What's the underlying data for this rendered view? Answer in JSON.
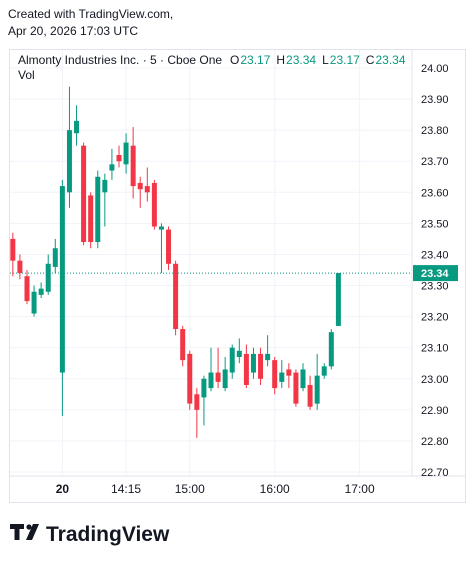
{
  "credit": {
    "line1": "Created with TradingView.com,",
    "line2": "Apr 20, 2026 17:03 UTC"
  },
  "brand": "TradingView",
  "chart_data": {
    "type": "candlestick",
    "title": "Almonty Industries Inc. · 5 · Cboe One",
    "ohlc_labels": [
      "O",
      "H",
      "L",
      "C"
    ],
    "volume_label": "Vol",
    "up_color": "#089981",
    "down_color": "#f23645",
    "grid": true,
    "x": [
      775,
      780,
      785,
      790,
      795,
      800,
      805,
      810,
      815,
      820,
      825,
      830,
      835,
      840,
      845,
      850,
      855,
      860,
      865,
      870,
      875,
      880,
      885,
      890,
      895,
      900,
      905,
      910,
      915,
      920,
      925,
      930,
      935,
      940,
      945,
      950,
      955,
      960,
      965,
      970,
      975,
      980,
      985,
      990,
      995,
      1000,
      1005
    ],
    "open": [
      23.45,
      23.38,
      23.33,
      23.21,
      23.27,
      23.28,
      23.36,
      23.02,
      23.6,
      23.79,
      23.75,
      23.59,
      23.44,
      23.6,
      23.67,
      23.72,
      23.69,
      23.75,
      23.63,
      23.62,
      23.63,
      23.48,
      23.48,
      23.37,
      23.16,
      23.08,
      22.95,
      22.94,
      22.97,
      23.02,
      22.97,
      23.02,
      23.07,
      23.08,
      23.02,
      23.08,
      23.06,
      23.06,
      22.99,
      23.03,
      23.02,
      22.97,
      22.98,
      22.92,
      23.01,
      23.04,
      23.17
    ],
    "high": [
      23.47,
      23.4,
      23.35,
      23.3,
      23.31,
      23.4,
      23.45,
      23.64,
      23.94,
      23.88,
      23.76,
      23.6,
      23.67,
      23.66,
      23.74,
      23.75,
      23.79,
      23.81,
      23.65,
      23.68,
      23.64,
      23.5,
      23.49,
      23.38,
      23.17,
      23.09,
      22.97,
      23.01,
      23.1,
      23.1,
      23.07,
      23.11,
      23.13,
      23.11,
      23.1,
      23.1,
      23.14,
      23.07,
      23.06,
      23.05,
      23.03,
      23.05,
      23.01,
      23.08,
      23.05,
      23.16,
      23.34
    ],
    "low": [
      23.33,
      23.32,
      23.24,
      23.2,
      23.26,
      23.27,
      23.34,
      22.88,
      23.55,
      23.75,
      23.43,
      23.42,
      23.42,
      23.49,
      23.64,
      23.68,
      23.66,
      23.58,
      23.55,
      23.57,
      23.48,
      23.34,
      23.35,
      23.14,
      23.04,
      22.9,
      22.81,
      22.85,
      22.96,
      22.97,
      22.96,
      23.0,
      23.05,
      22.97,
      23.0,
      22.98,
      23.04,
      22.95,
      22.97,
      22.97,
      22.91,
      22.96,
      22.9,
      22.9,
      23.0,
      23.03,
      23.17
    ],
    "close": [
      23.38,
      23.34,
      23.25,
      23.28,
      23.29,
      23.37,
      23.42,
      23.62,
      23.8,
      23.83,
      23.44,
      23.44,
      23.65,
      23.64,
      23.69,
      23.7,
      23.76,
      23.62,
      23.61,
      23.6,
      23.49,
      23.49,
      23.37,
      23.16,
      23.06,
      22.92,
      22.9,
      23.0,
      23.02,
      22.99,
      23.03,
      23.1,
      23.09,
      22.98,
      23.08,
      23.0,
      23.08,
      22.97,
      23.02,
      23.01,
      22.92,
      23.03,
      22.91,
      23.01,
      23.04,
      23.15,
      23.34
    ],
    "xlim": [
      773,
      1057
    ],
    "xticks": [
      {
        "value": 810,
        "label": "20"
      },
      {
        "value": 855,
        "label": "14:15"
      },
      {
        "value": 900,
        "label": "15:00"
      },
      {
        "value": 960,
        "label": "16:00"
      },
      {
        "value": 1020,
        "label": "17:00"
      }
    ],
    "ylim": [
      22.7,
      24.0
    ],
    "yticks": [
      {
        "value": 22.7,
        "label": "22.70"
      },
      {
        "value": 22.8,
        "label": "22.80"
      },
      {
        "value": 22.9,
        "label": "22.90"
      },
      {
        "value": 23.0,
        "label": "23.00"
      },
      {
        "value": 23.1,
        "label": "23.10"
      },
      {
        "value": 23.2,
        "label": "23.20"
      },
      {
        "value": 23.3,
        "label": "23.30"
      },
      {
        "value": 23.4,
        "label": "23.40"
      },
      {
        "value": 23.5,
        "label": "23.50"
      },
      {
        "value": 23.6,
        "label": "23.60"
      },
      {
        "value": 23.7,
        "label": "23.70"
      },
      {
        "value": 23.8,
        "label": "23.80"
      },
      {
        "value": 23.9,
        "label": "23.90"
      },
      {
        "value": 24.0,
        "label": "24.00"
      }
    ]
  }
}
